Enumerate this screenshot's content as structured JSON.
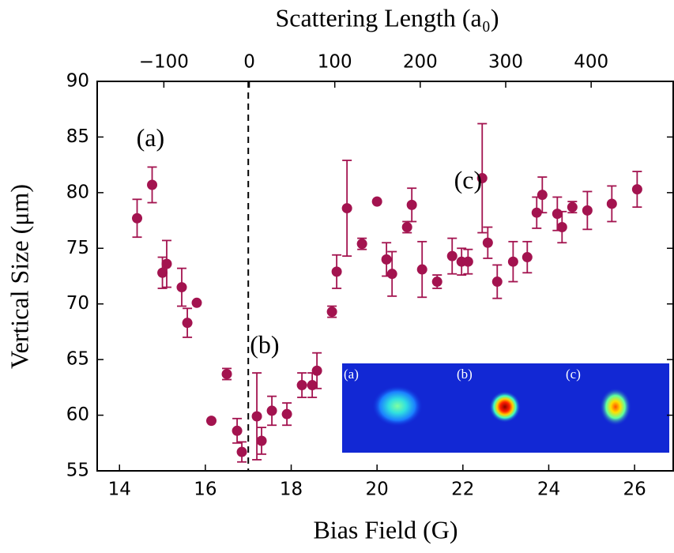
{
  "chart_data": {
    "type": "scatter",
    "xlabel": "Bias Field (G)",
    "ylabel": "Vertical Size (μm)",
    "x2label": "Scattering Length (a₀)",
    "color": "#a3134f",
    "x": [
      14.41,
      14.76,
      15.0,
      15.1,
      15.45,
      15.58,
      15.8,
      16.14,
      16.5,
      16.74,
      16.85,
      17.2,
      17.31,
      17.55,
      17.9,
      18.25,
      18.49,
      18.6,
      18.95,
      19.06,
      19.3,
      19.65,
      20.0,
      20.22,
      20.35,
      20.7,
      20.81,
      21.05,
      21.4,
      21.75,
      21.97,
      22.12,
      22.45,
      22.58,
      22.8,
      23.17,
      23.5,
      23.72,
      23.85,
      24.2,
      24.31,
      24.55,
      24.9,
      25.47,
      26.06
    ],
    "values": [
      77.7,
      80.7,
      72.8,
      73.6,
      71.5,
      68.3,
      70.1,
      59.5,
      63.7,
      58.6,
      56.7,
      59.9,
      57.7,
      60.4,
      60.1,
      62.7,
      62.7,
      64.0,
      69.3,
      72.9,
      78.6,
      75.4,
      79.2,
      74.0,
      72.7,
      76.9,
      78.9,
      73.1,
      72.0,
      74.3,
      73.8,
      73.8,
      81.3,
      75.5,
      72.0,
      73.8,
      74.2,
      78.2,
      79.8,
      78.1,
      76.9,
      78.7,
      78.4,
      79.0,
      80.3
    ],
    "errors": [
      1.7,
      1.6,
      1.4,
      2.1,
      1.7,
      1.3,
      null,
      null,
      0.5,
      1.1,
      0.9,
      3.9,
      1.2,
      1.3,
      1.0,
      1.1,
      1.1,
      1.6,
      0.5,
      1.5,
      4.3,
      0.5,
      null,
      1.5,
      2.0,
      0.5,
      1.5,
      2.5,
      0.6,
      1.6,
      1.2,
      1.1,
      4.9,
      1.4,
      1.5,
      1.8,
      1.4,
      1.4,
      1.6,
      1.5,
      1.4,
      0.5,
      1.7,
      1.6,
      1.6
    ],
    "xlim": [
      13.48,
      26.9
    ],
    "xticks": [
      14,
      16,
      18,
      20,
      22,
      24,
      26
    ],
    "ylim": [
      55,
      90
    ],
    "yticks": [
      55,
      60,
      65,
      70,
      75,
      80,
      85,
      90
    ],
    "x2lim": [
      -178,
      496
    ],
    "x2ticks": [
      {
        "value": -100,
        "label": "−100"
      },
      0,
      100,
      200,
      300,
      400
    ],
    "vline_x": 17,
    "annotations": [
      {
        "text": "(a)",
        "x": 14.72,
        "y": 84.7
      },
      {
        "text": "(b)",
        "x": 17.38,
        "y": 66.1
      },
      {
        "text": "(c)",
        "x": 22.12,
        "y": 80.9
      }
    ],
    "inset": {
      "labels": [
        "(a)",
        "(b)",
        "(c)"
      ]
    }
  }
}
